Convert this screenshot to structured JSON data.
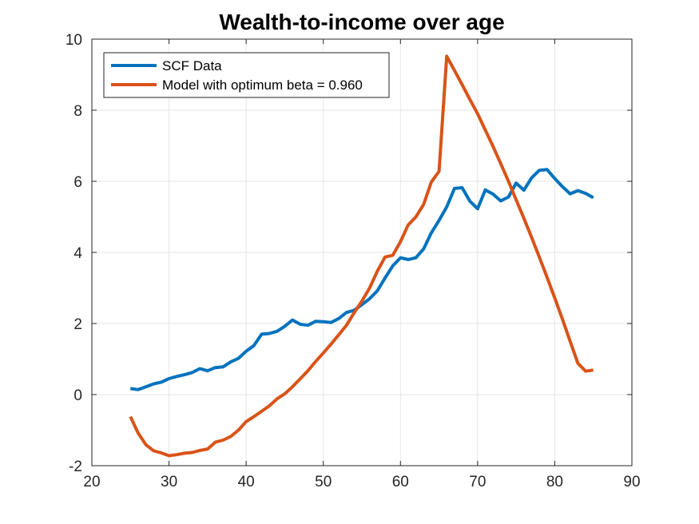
{
  "chart_data": {
    "type": "line",
    "title": "Wealth-to-income over age",
    "xlabel": "",
    "ylabel": "",
    "xlim": [
      20,
      90
    ],
    "ylim": [
      -2,
      10
    ],
    "xticks": [
      20,
      30,
      40,
      50,
      60,
      70,
      80,
      90
    ],
    "yticks": [
      -2,
      0,
      2,
      4,
      6,
      8,
      10
    ],
    "grid": true,
    "legend_position": "top-left",
    "series": [
      {
        "name": "SCF Data",
        "color": "#0072BD",
        "x": [
          25,
          26,
          27,
          28,
          29,
          30,
          31,
          32,
          33,
          34,
          35,
          36,
          37,
          38,
          39,
          40,
          41,
          42,
          43,
          44,
          45,
          46,
          47,
          48,
          49,
          50,
          51,
          52,
          53,
          54,
          55,
          56,
          57,
          58,
          59,
          60,
          61,
          62,
          63,
          64,
          65,
          66,
          67,
          68,
          69,
          70,
          71,
          72,
          73,
          74,
          75,
          76,
          77,
          78,
          79,
          80,
          81,
          82,
          83,
          84,
          85
        ],
        "y": [
          0.17,
          0.14,
          0.22,
          0.3,
          0.35,
          0.45,
          0.51,
          0.56,
          0.62,
          0.73,
          0.67,
          0.76,
          0.78,
          0.92,
          1.02,
          1.22,
          1.38,
          1.7,
          1.72,
          1.78,
          1.92,
          2.1,
          1.98,
          1.95,
          2.06,
          2.05,
          2.03,
          2.14,
          2.31,
          2.37,
          2.53,
          2.7,
          2.92,
          3.28,
          3.62,
          3.85,
          3.8,
          3.85,
          4.1,
          4.55,
          4.9,
          5.28,
          5.8,
          5.82,
          5.44,
          5.23,
          5.76,
          5.64,
          5.45,
          5.56,
          5.95,
          5.75,
          6.1,
          6.31,
          6.33,
          6.08,
          5.85,
          5.65,
          5.74,
          5.66,
          5.54
        ]
      },
      {
        "name": "Model with optimum beta = 0.960",
        "color": "#D95319",
        "x": [
          25,
          26,
          27,
          28,
          29,
          30,
          31,
          32,
          33,
          34,
          35,
          36,
          37,
          38,
          39,
          40,
          41,
          42,
          43,
          44,
          45,
          46,
          47,
          48,
          49,
          50,
          51,
          52,
          53,
          54,
          55,
          56,
          57,
          58,
          59,
          60,
          61,
          62,
          63,
          64,
          65,
          66,
          67,
          68,
          69,
          70,
          71,
          72,
          73,
          74,
          75,
          76,
          77,
          78,
          79,
          80,
          81,
          82,
          83,
          84,
          85
        ],
        "y": [
          -0.62,
          -1.08,
          -1.41,
          -1.58,
          -1.64,
          -1.72,
          -1.69,
          -1.65,
          -1.63,
          -1.57,
          -1.53,
          -1.34,
          -1.28,
          -1.18,
          -1.0,
          -0.76,
          -0.62,
          -0.47,
          -0.32,
          -0.12,
          0.02,
          0.22,
          0.44,
          0.67,
          0.93,
          1.17,
          1.42,
          1.68,
          1.95,
          2.3,
          2.63,
          3.0,
          3.47,
          3.87,
          3.92,
          4.3,
          4.77,
          5.0,
          5.35,
          5.98,
          6.28,
          9.52,
          9.12,
          8.72,
          8.3,
          7.9,
          7.44,
          6.98,
          6.5,
          6.0,
          5.48,
          4.96,
          4.42,
          3.87,
          3.3,
          2.72,
          2.12,
          1.5,
          0.88,
          0.66,
          0.69
        ]
      }
    ]
  }
}
